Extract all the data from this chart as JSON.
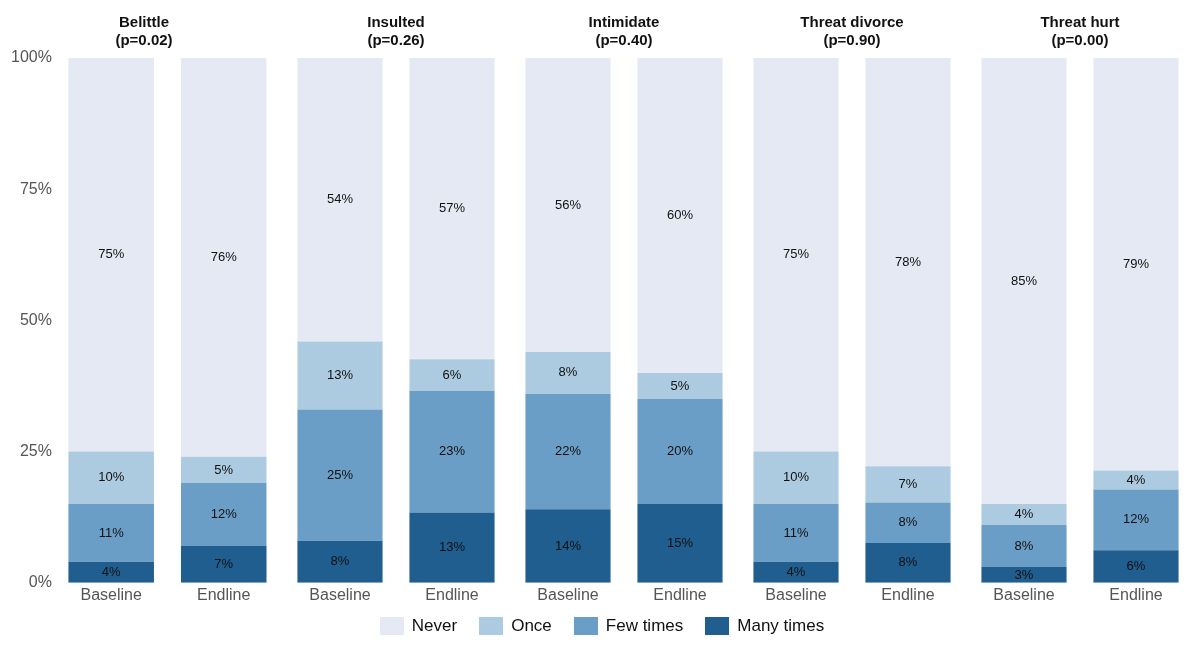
{
  "chart_data": [
    {
      "type": "bar",
      "title": "Belittle\n(p=0.02)",
      "categories": [
        "Baseline",
        "Endline"
      ],
      "stacked": true,
      "legend": "bottom",
      "grid": false,
      "ylim": [
        0,
        100
      ],
      "yticks": [
        {
          "value": 0,
          "label": "0%"
        },
        {
          "value": 25,
          "label": "25%"
        },
        {
          "value": 50,
          "label": "50%"
        },
        {
          "value": 75,
          "label": "75%"
        },
        {
          "value": 100,
          "label": "100%"
        }
      ],
      "series": [
        {
          "name": "Many times",
          "color": "#1f5e8f",
          "values": [
            4,
            7
          ],
          "value_labels": [
            "4%",
            "7%"
          ]
        },
        {
          "name": "Few times",
          "color": "#6b9ec6",
          "values": [
            11,
            12
          ],
          "value_labels": [
            "11%",
            "12%"
          ]
        },
        {
          "name": "Once",
          "color": "#adcbe0",
          "values": [
            10,
            5
          ],
          "value_labels": [
            "10%",
            "5%"
          ]
        },
        {
          "name": "Never",
          "color": "#e4e9f4",
          "values": [
            75,
            76
          ],
          "value_labels": [
            "75%",
            "76%"
          ]
        }
      ]
    },
    {
      "type": "bar",
      "title": "Insulted\n(p=0.26)",
      "categories": [
        "Baseline",
        "Endline"
      ],
      "stacked": true,
      "grid": false,
      "tick_labels": "x",
      "ylim": [
        0,
        100
      ],
      "series": [
        {
          "color": "#1f5e8f",
          "values": [
            8,
            13.4
          ],
          "value_labels": [
            "8%",
            "13%"
          ]
        },
        {
          "color": "#6b9ec6",
          "values": [
            25,
            23.2
          ],
          "value_labels": [
            "25%",
            "23%"
          ]
        },
        {
          "color": "#adcbe0",
          "values": [
            13,
            6
          ],
          "value_labels": [
            "13%",
            "6%"
          ]
        },
        {
          "color": "#e4e9f4",
          "values": [
            54,
            57.4
          ],
          "value_labels": [
            "54%",
            "57%"
          ]
        }
      ]
    },
    {
      "type": "bar",
      "title": "Intimidate\n(p=0.40)",
      "categories": [
        "Baseline",
        "Endline"
      ],
      "stacked": true,
      "grid": false,
      "tick_labels": "x",
      "ylim": [
        0,
        100
      ],
      "series": [
        {
          "color": "#1f5e8f",
          "values": [
            14,
            15
          ],
          "value_labels": [
            "14%",
            "15%"
          ]
        },
        {
          "color": "#6b9ec6",
          "values": [
            22,
            20
          ],
          "value_labels": [
            "22%",
            "20%"
          ]
        },
        {
          "color": "#adcbe0",
          "values": [
            8,
            5
          ],
          "value_labels": [
            "8%",
            "5%"
          ]
        },
        {
          "color": "#e4e9f4",
          "values": [
            56,
            60
          ],
          "value_labels": [
            "56%",
            "60%"
          ]
        }
      ]
    },
    {
      "type": "bar",
      "title": "Threat divorce\n(p=0.90)",
      "categories": [
        "Baseline",
        "Endline"
      ],
      "stacked": true,
      "grid": false,
      "tick_labels": "x",
      "ylim": [
        0,
        100
      ],
      "series": [
        {
          "color": "#1f5e8f",
          "values": [
            4,
            7.6
          ],
          "value_labels": [
            "4%",
            "8%"
          ]
        },
        {
          "color": "#6b9ec6",
          "values": [
            11,
            7.7
          ],
          "value_labels": [
            "11%",
            "8%"
          ]
        },
        {
          "color": "#adcbe0",
          "values": [
            10,
            6.9
          ],
          "value_labels": [
            "10%",
            "7%"
          ]
        },
        {
          "color": "#e4e9f4",
          "values": [
            75,
            77.8
          ],
          "value_labels": [
            "75%",
            "78%"
          ]
        }
      ]
    },
    {
      "type": "bar",
      "title": "Threat hurt\n(p=0.00)",
      "categories": [
        "Baseline",
        "Endline"
      ],
      "stacked": true,
      "grid": false,
      "tick_labels": "x",
      "ylim": [
        0,
        100
      ],
      "series": [
        {
          "color": "#1f5e8f",
          "values": [
            3,
            6.2
          ],
          "value_labels": [
            "3%",
            "6%"
          ]
        },
        {
          "color": "#6b9ec6",
          "values": [
            8,
            11.6
          ],
          "value_labels": [
            "8%",
            "12%"
          ]
        },
        {
          "color": "#adcbe0",
          "values": [
            4,
            3.6
          ],
          "value_labels": [
            "4%",
            "4%"
          ]
        },
        {
          "color": "#e4e9f4",
          "values": [
            85,
            78.6
          ],
          "value_labels": [
            "85%",
            "79%"
          ]
        }
      ]
    }
  ]
}
